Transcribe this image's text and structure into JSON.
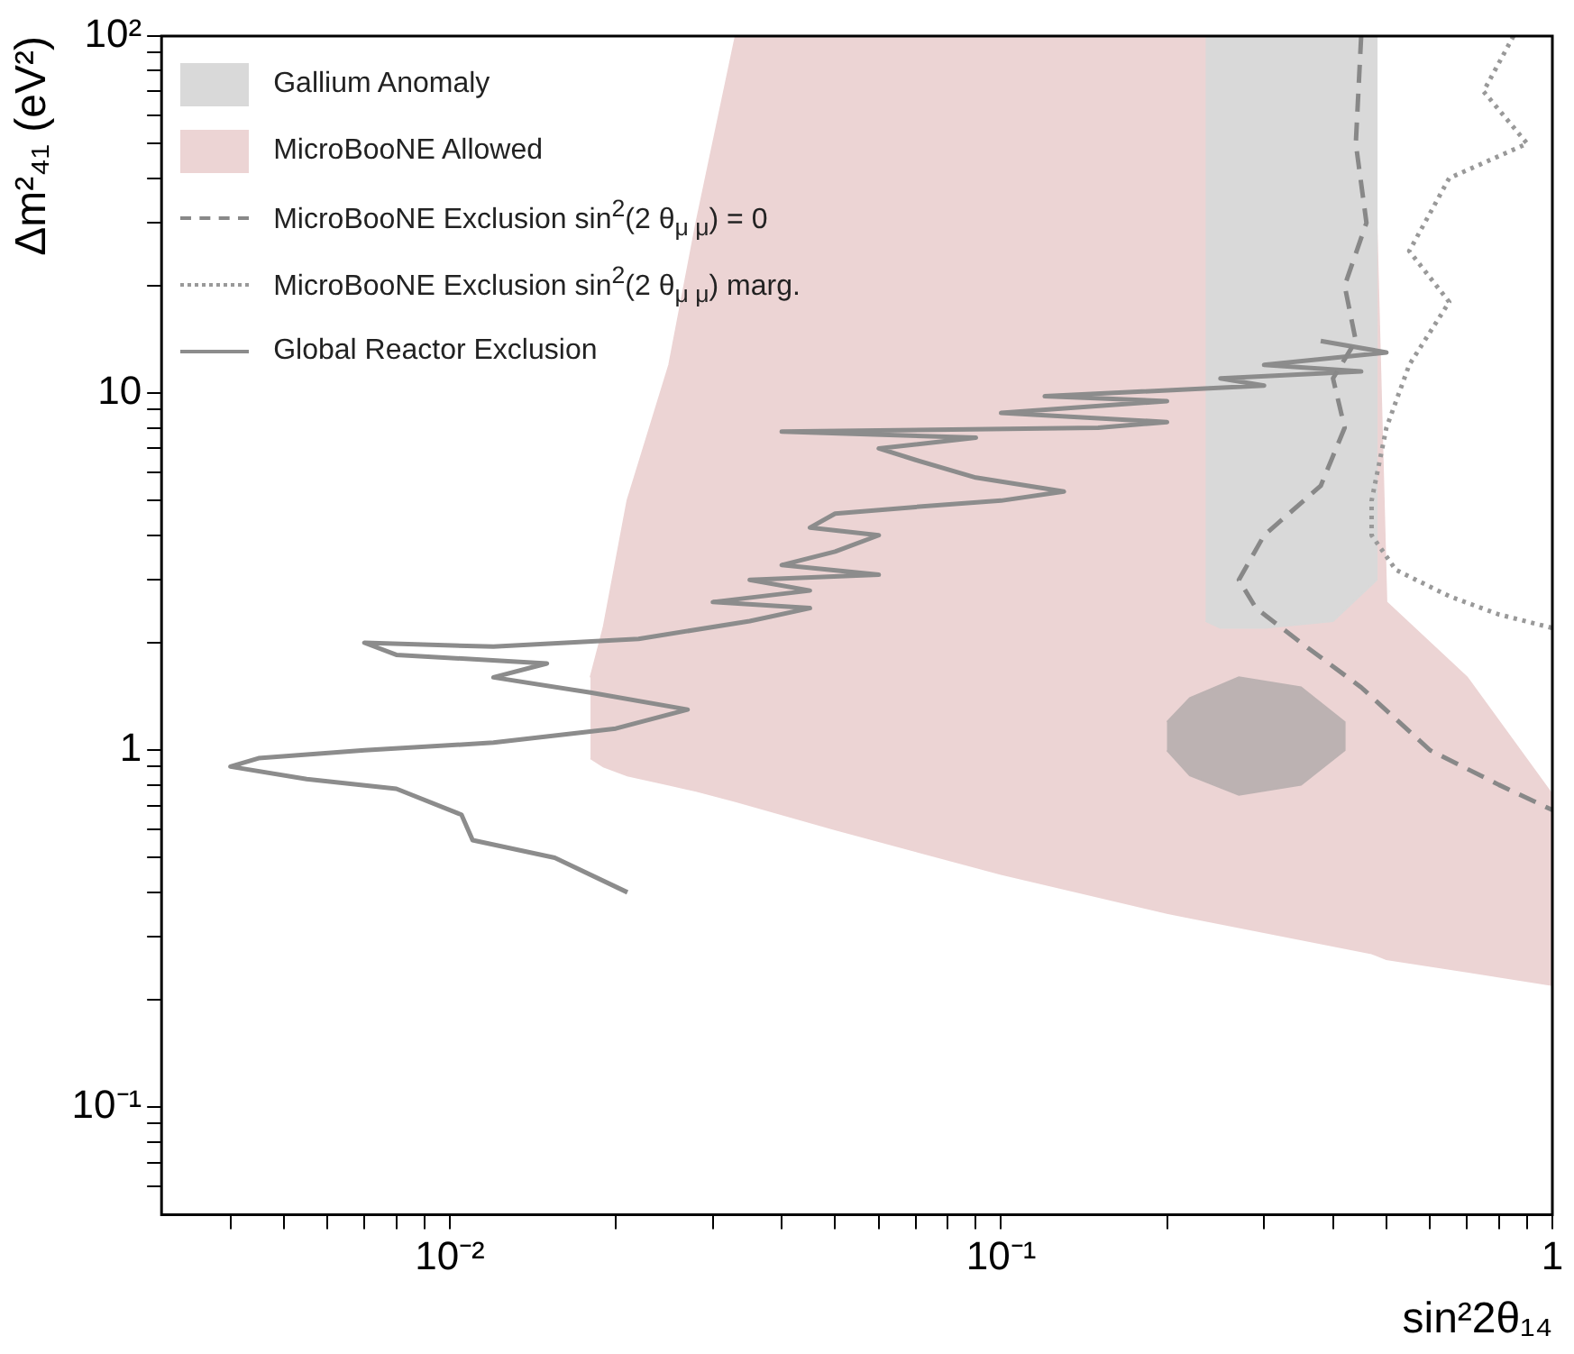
{
  "chart_data": {
    "type": "line",
    "log": "xy",
    "grid": false,
    "legend": "top left",
    "xlabel": "sin²2θ₁₄",
    "ylabel": "Δm²₄₁ (eV²)",
    "xlim": [
      0.003,
      1
    ],
    "ylim": [
      0.05,
      100
    ],
    "xticks": [
      {
        "value": 0.004,
        "label": null
      },
      {
        "value": 0.005,
        "label": null
      },
      {
        "value": 0.006,
        "label": null
      },
      {
        "value": 0.007,
        "label": null
      },
      {
        "value": 0.008,
        "label": null
      },
      {
        "value": 0.009,
        "label": null
      },
      {
        "value": 0.01,
        "label": "10⁻²"
      },
      {
        "value": 0.02,
        "label": null
      },
      {
        "value": 0.03,
        "label": null
      },
      {
        "value": 0.04,
        "label": null
      },
      {
        "value": 0.05,
        "label": null
      },
      {
        "value": 0.06,
        "label": null
      },
      {
        "value": 0.07,
        "label": null
      },
      {
        "value": 0.08,
        "label": null
      },
      {
        "value": 0.09,
        "label": null
      },
      {
        "value": 0.1,
        "label": "10⁻¹"
      },
      {
        "value": 0.2,
        "label": null
      },
      {
        "value": 0.3,
        "label": null
      },
      {
        "value": 0.4,
        "label": null
      },
      {
        "value": 0.5,
        "label": null
      },
      {
        "value": 0.6,
        "label": null
      },
      {
        "value": 0.7,
        "label": null
      },
      {
        "value": 0.8,
        "label": null
      },
      {
        "value": 0.9,
        "label": null
      },
      1
    ],
    "yticks": [
      {
        "value": 0.06,
        "label": null
      },
      {
        "value": 0.07,
        "label": null
      },
      {
        "value": 0.08,
        "label": null
      },
      {
        "value": 0.09,
        "label": null
      },
      {
        "value": 0.1,
        "label": "10⁻¹"
      },
      {
        "value": 0.2,
        "label": null
      },
      {
        "value": 0.3,
        "label": null
      },
      {
        "value": 0.4,
        "label": null
      },
      {
        "value": 0.5,
        "label": null
      },
      {
        "value": 0.6,
        "label": null
      },
      {
        "value": 0.7,
        "label": null
      },
      {
        "value": 0.8,
        "label": null
      },
      {
        "value": 0.9,
        "label": null
      },
      1,
      {
        "value": 2,
        "label": null
      },
      {
        "value": 3,
        "label": null
      },
      {
        "value": 4,
        "label": null
      },
      {
        "value": 5,
        "label": null
      },
      {
        "value": 6,
        "label": null
      },
      {
        "value": 7,
        "label": null
      },
      {
        "value": 8,
        "label": null
      },
      {
        "value": 9,
        "label": null
      },
      10,
      {
        "value": 20,
        "label": null
      },
      {
        "value": 30,
        "label": null
      },
      {
        "value": 40,
        "label": null
      },
      {
        "value": 50,
        "label": null
      },
      {
        "value": 60,
        "label": null
      },
      {
        "value": 70,
        "label": null
      },
      {
        "value": 80,
        "label": null
      },
      {
        "value": 90,
        "label": null
      },
      {
        "value": 100,
        "label": "10²"
      }
    ],
    "series": [
      {
        "name": "Gallium Anomaly",
        "type": "area",
        "color": "#d9d9d9",
        "x": [
          0.235,
          0.48,
          0.48,
          0.4,
          0.3,
          0.25,
          0.235
        ],
        "values": [
          100,
          100,
          3,
          2.3,
          2.2,
          2.2,
          2.3
        ]
      },
      {
        "type": "area",
        "color": "#bcb2b2",
        "x": [
          0.2,
          0.22,
          0.27,
          0.35,
          0.42,
          0.42,
          0.35,
          0.27,
          0.22,
          0.2
        ],
        "values": [
          1.2,
          1.4,
          1.6,
          1.5,
          1.2,
          1,
          0.8,
          0.75,
          0.85,
          1
        ]
      },
      {
        "name": "MicroBooNE Allowed",
        "type": "area",
        "color": "#ecd4d4",
        "x": [
          0.018,
          0.019,
          0.021,
          0.025,
          0.028,
          0.033,
          0.47,
          0.5,
          0.7,
          1,
          1,
          0.7,
          0.5,
          0.47,
          0.2,
          0.1,
          0.05,
          0.033,
          0.028,
          0.025,
          0.021,
          0.019,
          0.018
        ],
        "values": [
          1.6,
          2.2,
          5,
          12,
          30,
          100,
          100,
          2.6,
          1.6,
          0.75,
          0.22,
          0.24,
          0.26,
          0.27,
          0.35,
          0.45,
          0.6,
          0.72,
          0.77,
          0.8,
          0.85,
          0.9,
          0.95
        ]
      },
      {
        "name": "MicroBooNE Exclusion sin$^{2}$(2 θ$_{μ μ}$) = 0",
        "type": "line",
        "line_style": "dashed",
        "color": "#888888",
        "x": [
          0.45,
          0.44,
          0.46,
          0.42,
          0.44,
          0.4,
          0.42,
          0.38,
          0.3,
          0.27,
          0.29,
          0.35,
          0.45,
          0.6,
          0.8,
          1
        ],
        "values": [
          100,
          50,
          30,
          20,
          14,
          11,
          8,
          5.5,
          4,
          3,
          2.5,
          2,
          1.5,
          1,
          0.8,
          0.68
        ]
      },
      {
        "name": "MicroBooNE Exclusion sin$^{2}$(2 θ$_{μ μ}$) marg.",
        "type": "line",
        "line_style": "dotted",
        "color": "#999999",
        "x": [
          0.85,
          0.75,
          0.9,
          0.65,
          0.55,
          0.65,
          0.55,
          0.5,
          0.47,
          0.47,
          0.52,
          0.65,
          0.8,
          1
        ],
        "values": [
          100,
          70,
          50,
          40,
          25,
          18,
          12,
          8,
          5,
          4,
          3.2,
          2.7,
          2.4,
          2.2
        ]
      },
      {
        "name": "Global Reactor Exclusion",
        "type": "line",
        "line_style": "solid",
        "color": "#8c8c8c",
        "x": [
          0.021,
          0.0155,
          0.011,
          0.0105,
          0.008,
          0.0055,
          0.004,
          0.0045,
          0.007,
          0.012,
          0.02,
          0.027,
          0.018,
          0.012,
          0.015,
          0.008,
          0.007,
          0.012,
          0.022,
          0.035,
          0.045,
          0.03,
          0.045,
          0.035,
          0.06,
          0.04,
          0.05,
          0.06,
          0.045,
          0.05,
          0.07,
          0.1,
          0.13,
          0.09,
          0.07,
          0.06,
          0.09,
          0.04,
          0.15,
          0.2,
          0.1,
          0.2,
          0.12,
          0.3,
          0.25,
          0.45,
          0.3,
          0.5,
          0.38
        ],
        "values": [
          0.4,
          0.5,
          0.56,
          0.66,
          0.78,
          0.83,
          0.9,
          0.95,
          1,
          1.05,
          1.15,
          1.3,
          1.45,
          1.6,
          1.75,
          1.85,
          2,
          1.95,
          2.05,
          2.3,
          2.5,
          2.6,
          2.8,
          3,
          3.1,
          3.3,
          3.6,
          4,
          4.2,
          4.6,
          4.8,
          5,
          5.3,
          5.8,
          6.5,
          7,
          7.5,
          7.8,
          8,
          8.3,
          8.8,
          9.5,
          9.8,
          10.5,
          11,
          11.5,
          12,
          13,
          14
        ]
      }
    ]
  }
}
